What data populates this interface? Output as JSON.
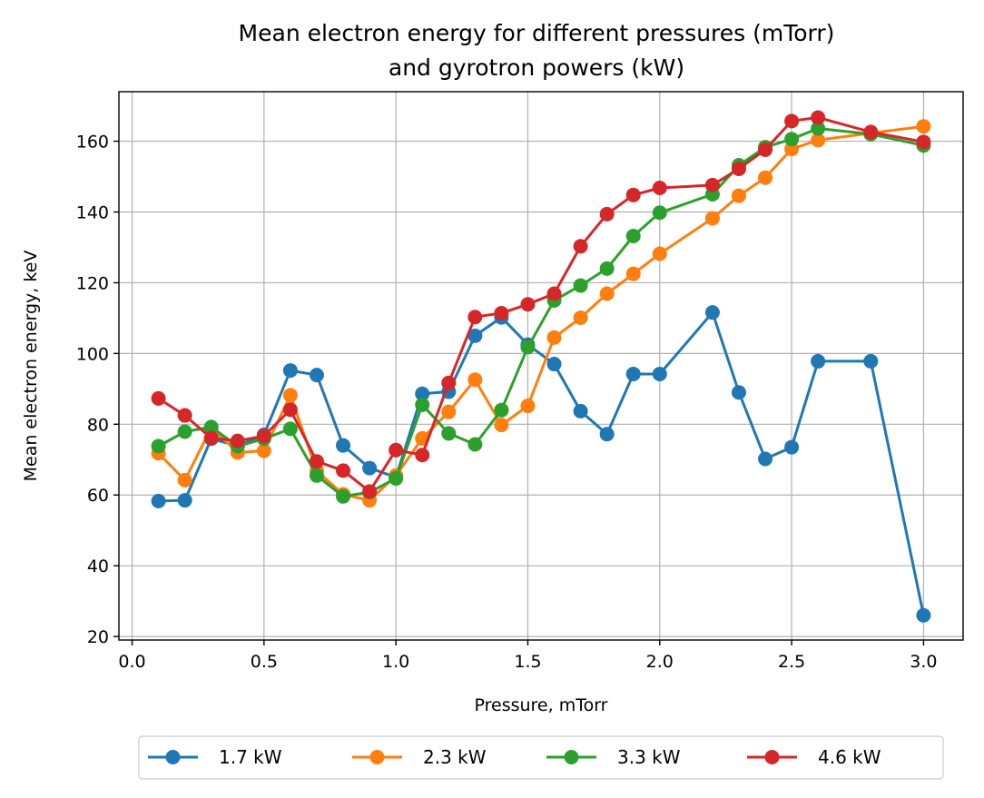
{
  "chart_data": {
    "type": "line",
    "title": [
      "Mean electron energy for different pressures (mTorr)",
      "and gyrotron powers (kW)"
    ],
    "xlabel": "Pressure, mTorr",
    "ylabel": "Mean electron energy, keV",
    "xlim": [
      -0.05,
      3.15
    ],
    "ylim": [
      19,
      174
    ],
    "xticks": [
      0.0,
      0.5,
      1.0,
      1.5,
      2.0,
      2.5,
      3.0
    ],
    "xtick_labels": [
      "0.0",
      "0.5",
      "1.0",
      "1.5",
      "2.0",
      "2.5",
      "3.0"
    ],
    "yticks": [
      20,
      40,
      60,
      80,
      100,
      120,
      140,
      160
    ],
    "ytick_labels": [
      "20",
      "40",
      "60",
      "80",
      "100",
      "120",
      "140",
      "160"
    ],
    "grid": true,
    "legend_position": "bottom-center",
    "series": [
      {
        "name": "1.7 kW",
        "color": "#1f77b4",
        "x": [
          0.1,
          0.2,
          0.3,
          0.4,
          0.5,
          0.6,
          0.7,
          0.8,
          0.9,
          1.0,
          1.1,
          1.2,
          1.3,
          1.4,
          1.5,
          1.6,
          1.7,
          1.8,
          1.9,
          2.0,
          2.2,
          2.3,
          2.4,
          2.5,
          2.6,
          2.8,
          3.0
        ],
        "y": [
          58.3,
          58.5,
          75.9,
          73.9,
          77.0,
          95.2,
          93.9,
          74.0,
          67.6,
          65.0,
          88.6,
          89.2,
          105.0,
          110.2,
          102.5,
          97.0,
          83.7,
          77.2,
          94.2,
          94.2,
          111.6,
          89.0,
          70.2,
          73.5,
          97.8,
          97.8,
          26.0
        ]
      },
      {
        "name": "2.3 kW",
        "color": "#ff7f0e",
        "x": [
          0.1,
          0.2,
          0.3,
          0.4,
          0.5,
          0.6,
          0.7,
          0.8,
          0.9,
          1.0,
          1.1,
          1.2,
          1.3,
          1.4,
          1.5,
          1.6,
          1.7,
          1.8,
          1.9,
          2.0,
          2.2,
          2.3,
          2.4,
          2.5,
          2.6,
          2.8,
          3.0
        ],
        "y": [
          71.8,
          64.2,
          79.0,
          72.0,
          72.5,
          88.2,
          66.8,
          60.2,
          58.5,
          65.5,
          76.0,
          83.5,
          92.6,
          79.8,
          85.2,
          104.5,
          110.1,
          116.9,
          122.5,
          128.2,
          138.2,
          144.6,
          149.7,
          157.8,
          160.3,
          162.3,
          164.2
        ]
      },
      {
        "name": "3.3 kW",
        "color": "#2ca02c",
        "x": [
          0.1,
          0.2,
          0.3,
          0.4,
          0.5,
          0.6,
          0.7,
          0.8,
          0.9,
          1.0,
          1.1,
          1.2,
          1.3,
          1.4,
          1.5,
          1.6,
          1.7,
          1.8,
          1.9,
          2.0,
          2.2,
          2.3,
          2.4,
          2.5,
          2.6,
          2.8,
          3.0
        ],
        "y": [
          73.8,
          77.9,
          79.2,
          73.8,
          75.9,
          78.7,
          65.5,
          59.6,
          60.8,
          64.7,
          85.5,
          77.4,
          74.3,
          84.0,
          101.8,
          115.0,
          119.2,
          124.0,
          133.2,
          139.8,
          145.0,
          153.2,
          158.3,
          160.6,
          163.6,
          162.0,
          158.8
        ]
      },
      {
        "name": "4.6 kW",
        "color": "#d62728",
        "x": [
          0.1,
          0.2,
          0.3,
          0.4,
          0.5,
          0.6,
          0.7,
          0.8,
          0.9,
          1.0,
          1.1,
          1.2,
          1.3,
          1.4,
          1.5,
          1.6,
          1.7,
          1.8,
          1.9,
          2.0,
          2.2,
          2.3,
          2.4,
          2.5,
          2.6,
          2.8,
          3.0
        ],
        "y": [
          87.3,
          82.5,
          76.1,
          75.3,
          76.7,
          84.1,
          69.5,
          66.9,
          61.0,
          72.7,
          71.3,
          91.7,
          110.3,
          111.4,
          113.9,
          116.9,
          130.3,
          139.4,
          144.8,
          146.8,
          147.6,
          152.2,
          157.6,
          165.7,
          166.7,
          162.6,
          159.8
        ]
      }
    ]
  }
}
